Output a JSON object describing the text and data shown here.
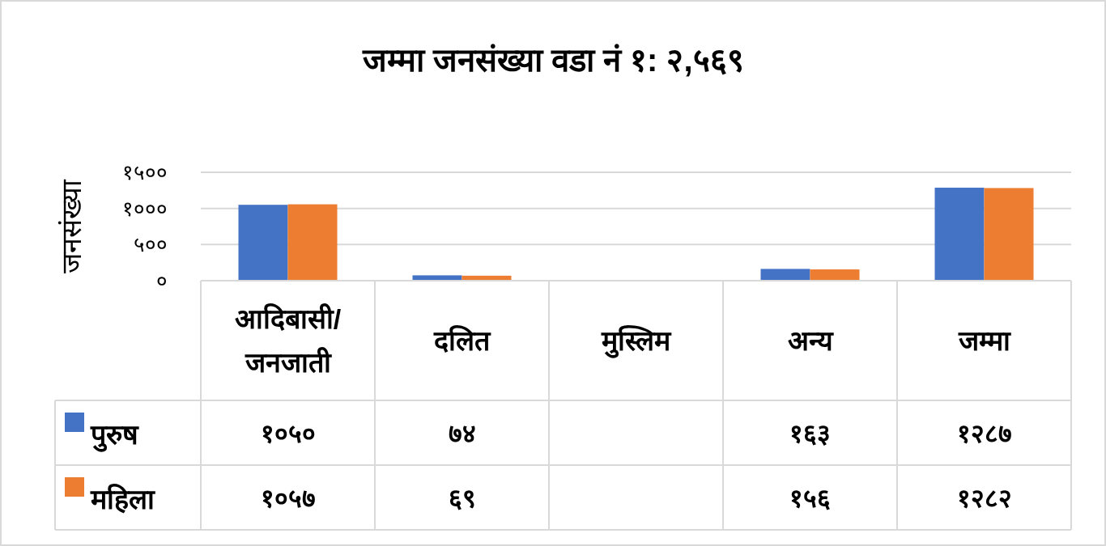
{
  "chart_data": {
    "type": "bar",
    "title": "जम्मा  जनसंख्या वडा  नं   १: २,५६९",
    "ylabel": "जनसंख्या",
    "categories": [
      "आदिबासी/जनजाती",
      "दलित",
      "मुस्लिम",
      "अन्य",
      "जम्मा"
    ],
    "series": [
      {
        "name": "पुरुष",
        "color": "#4472c4",
        "values": [
          1050,
          74,
          null,
          163,
          1287
        ],
        "value_labels": [
          "१०५०",
          "७४",
          null,
          "१६३",
          "१२८७"
        ]
      },
      {
        "name": "महिला",
        "color": "#ed7d31",
        "values": [
          1057,
          69,
          null,
          156,
          1282
        ],
        "value_labels": [
          "१०५७",
          "६९",
          null,
          "१५६",
          "१२८२"
        ]
      }
    ],
    "ylim": [
      0,
      1500
    ],
    "yticks": [
      {
        "value": 0,
        "label": "०"
      },
      {
        "value": 500,
        "label": "५००"
      },
      {
        "value": 1000,
        "label": "१०००"
      },
      {
        "value": 1500,
        "label": "१५००"
      }
    ],
    "grid": "y",
    "legend": "bottom"
  }
}
